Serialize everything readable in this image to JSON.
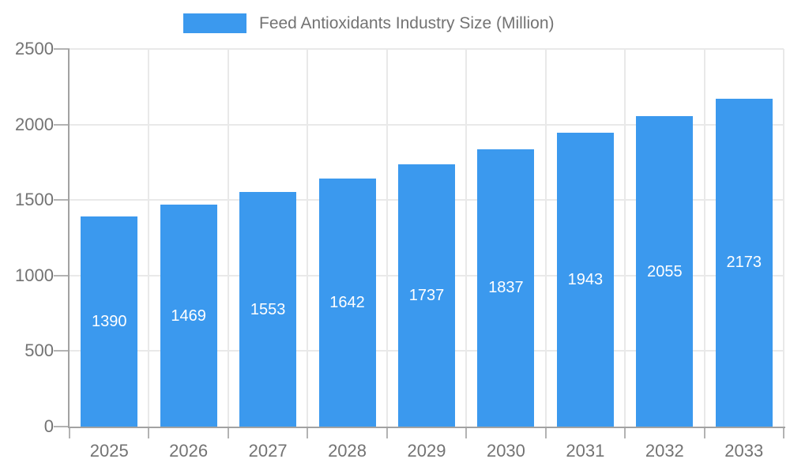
{
  "chart_data": {
    "type": "bar",
    "title": "Feed Antioxidants Industry Size (Million)",
    "categories": [
      "2025",
      "2026",
      "2027",
      "2028",
      "2029",
      "2030",
      "2031",
      "2032",
      "2033"
    ],
    "values": [
      1390,
      1469,
      1553,
      1642,
      1737,
      1837,
      1943,
      2055,
      2173
    ],
    "xlabel": "",
    "ylabel": "",
    "ylim": [
      0,
      2500
    ],
    "yticks": [
      0,
      500,
      1000,
      1500,
      2000,
      2500
    ],
    "grid": true,
    "legend_position": "top",
    "colors": {
      "bar": "#3B99EE",
      "value_label": "#FFFFFF",
      "axis_text": "#737373",
      "grid_line": "#E9E9E9",
      "axis_line": "#A2A2A2",
      "tick_mark": "#B3B3B3"
    }
  }
}
